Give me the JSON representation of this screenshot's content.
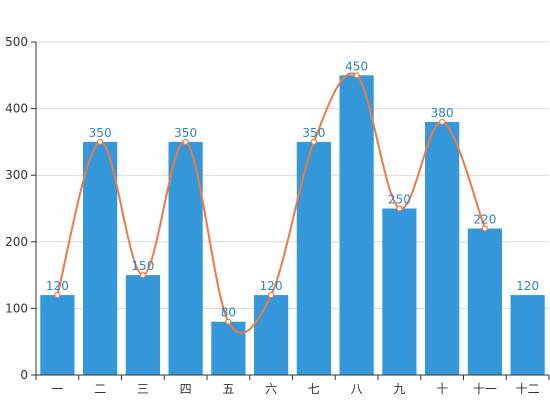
{
  "chart_data": {
    "type": "bar",
    "categories": [
      "一",
      "二",
      "三",
      "四",
      "五",
      "六",
      "七",
      "八",
      "九",
      "十",
      "十一",
      "十二"
    ],
    "series": [
      {
        "type": "bar",
        "values": [
          120,
          350,
          150,
          350,
          80,
          120,
          350,
          450,
          250,
          380,
          220,
          120
        ]
      },
      {
        "type": "line",
        "smooth": true,
        "values": [
          120,
          350,
          150,
          350,
          80,
          120,
          350,
          450,
          250,
          380,
          220,
          null
        ]
      }
    ],
    "yticks": [
      0,
      100,
      200,
      300,
      400,
      500
    ],
    "ylim": [
      0,
      500
    ],
    "grid": true,
    "bar_color": "#3498db",
    "line_color": "#f07a44",
    "label_color": "#2e86c1"
  }
}
